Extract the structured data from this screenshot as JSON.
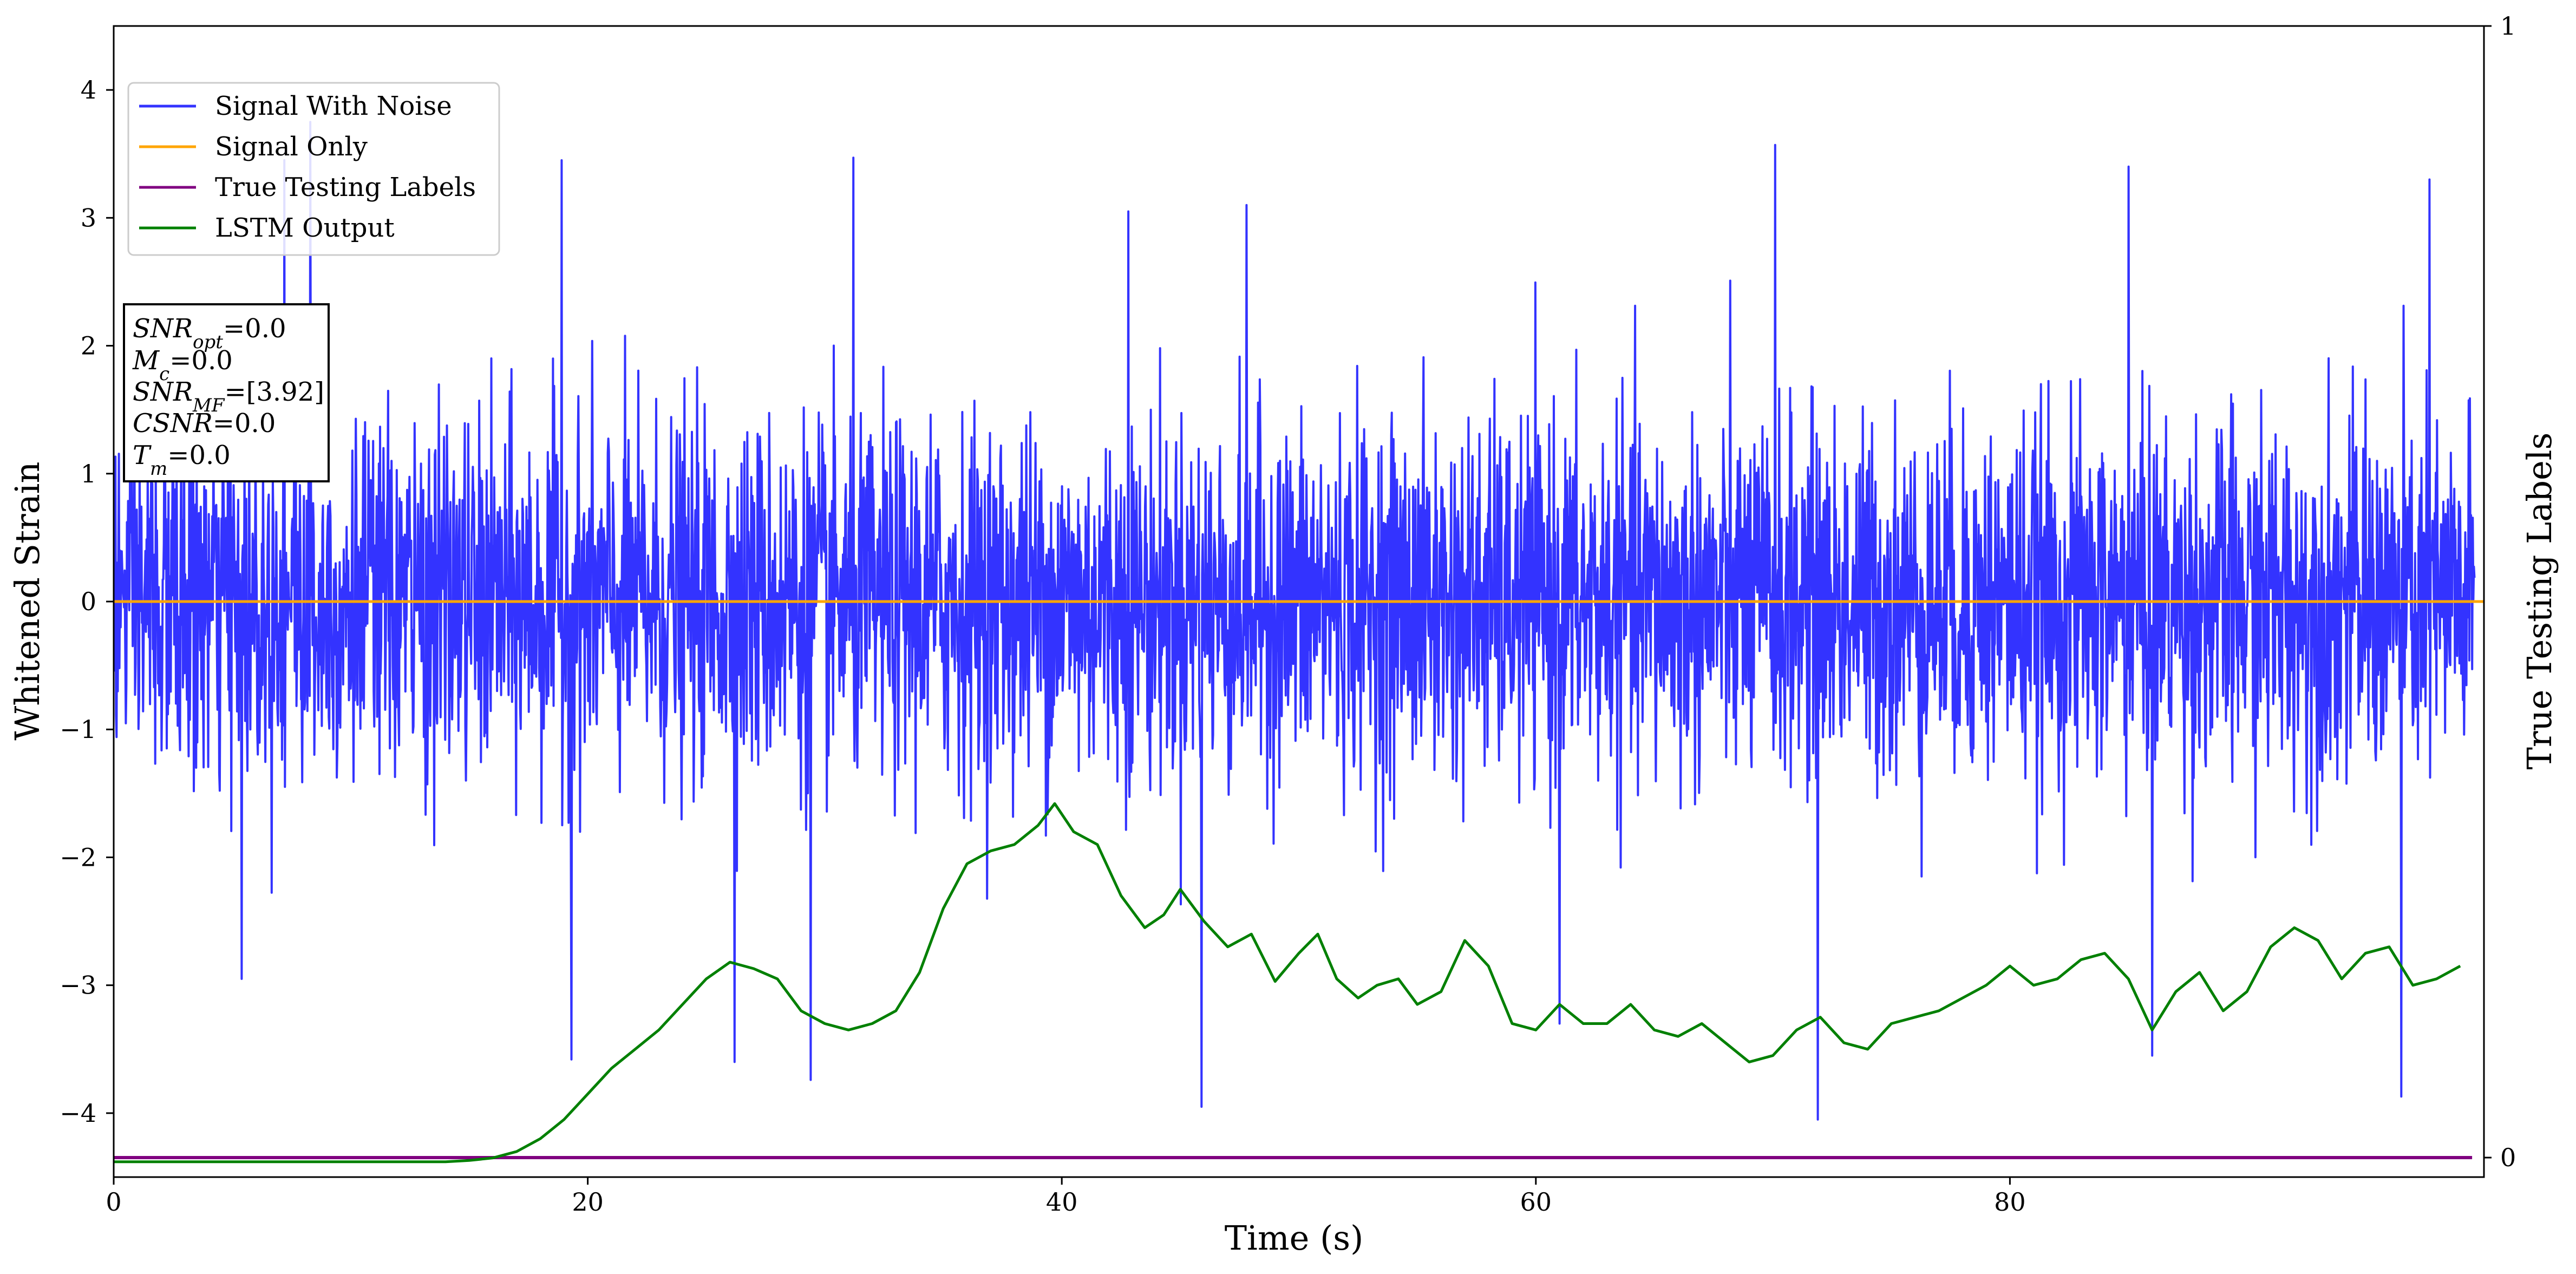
{
  "chart_data": {
    "type": "line",
    "xlabel": "Time (s)",
    "ylabel": "Whitened Strain",
    "y2label": "True Testing Labels",
    "xlim": [
      0,
      100
    ],
    "ylim": [
      -4.5,
      4.5
    ],
    "y2lim": [
      0,
      1
    ],
    "xticks": [
      0,
      20,
      40,
      60,
      80
    ],
    "yticks": [
      -4,
      -3,
      -2,
      -1,
      0,
      1,
      2,
      3,
      4
    ],
    "y2ticks": [
      0,
      1
    ],
    "grid": false,
    "legend": {
      "placement": "top-left",
      "entries": [
        {
          "name": "Signal With Noise",
          "color": "#3333ff"
        },
        {
          "name": "Signal Only",
          "color": "#ffa500"
        },
        {
          "name": "True Testing Labels",
          "color": "#800080"
        },
        {
          "name": "LSTM Output",
          "color": "#008000"
        }
      ]
    },
    "annotation": [
      {
        "label": "SNR",
        "sub": "opt",
        "value": "=0.0"
      },
      {
        "label": "M",
        "sub": "c",
        "value": "=0.0"
      },
      {
        "label": "SNR",
        "sub": "MF",
        "value": "=[3.92]"
      },
      {
        "label": "CSNR",
        "sub": "",
        "value": "=0.0"
      },
      {
        "label": "T",
        "sub": "m",
        "value": "=0.0"
      }
    ],
    "series": [
      {
        "name": "Signal With Noise",
        "axis": "left",
        "description_stats": {
          "typical_band": [
            -1.4,
            1.4
          ],
          "min": -4.05,
          "max": 3.78,
          "samples": 4096
        },
        "spikes": [
          {
            "x": 8.3,
            "y": 3.75
          },
          {
            "x": 7.2,
            "y": 3.45
          },
          {
            "x": 18.9,
            "y": 3.45
          },
          {
            "x": 31.2,
            "y": 3.47
          },
          {
            "x": 70.1,
            "y": 3.57
          },
          {
            "x": 97.7,
            "y": 3.3
          },
          {
            "x": 85.0,
            "y": 3.4
          },
          {
            "x": 47.8,
            "y": 3.1
          },
          {
            "x": 42.8,
            "y": 3.05
          },
          {
            "x": 71.9,
            "y": -4.05
          },
          {
            "x": 45.9,
            "y": -3.95
          },
          {
            "x": 29.4,
            "y": -3.74
          },
          {
            "x": 19.3,
            "y": -3.58
          },
          {
            "x": 26.2,
            "y": -3.6
          },
          {
            "x": 96.5,
            "y": -3.87
          },
          {
            "x": 86.0,
            "y": -3.55
          },
          {
            "x": 5.4,
            "y": -2.95
          },
          {
            "x": 61.0,
            "y": -3.3
          }
        ]
      },
      {
        "name": "Signal Only",
        "axis": "left",
        "x": [
          0,
          100
        ],
        "y": [
          0,
          0
        ]
      },
      {
        "name": "True Testing Labels",
        "axis": "right",
        "x": [
          0,
          99.5
        ],
        "y": [
          0,
          0
        ]
      },
      {
        "name": "LSTM Output",
        "axis": "left",
        "x": [
          0,
          14,
          15,
          16,
          17,
          18,
          19,
          20,
          21,
          22,
          23,
          24,
          25,
          26,
          27,
          28,
          29,
          30,
          31,
          32,
          33,
          34,
          35,
          36,
          37,
          38,
          39,
          39.7,
          40.5,
          41.5,
          42.5,
          43.5,
          44.3,
          45,
          46,
          47,
          48,
          49,
          50,
          50.8,
          51.6,
          52.5,
          53.3,
          54.2,
          55,
          56,
          57,
          58,
          59,
          60,
          61,
          62,
          63,
          64,
          65,
          66,
          67,
          68,
          69,
          70,
          71,
          72,
          73,
          74,
          75,
          76,
          77,
          78,
          79,
          80,
          81,
          82,
          83,
          84,
          85,
          86,
          87,
          88,
          89,
          90,
          91,
          92,
          93,
          94,
          95,
          96,
          97,
          98,
          99
        ],
        "y": [
          -4.38,
          -4.38,
          -4.37,
          -4.35,
          -4.3,
          -4.2,
          -4.05,
          -3.85,
          -3.65,
          -3.5,
          -3.35,
          -3.15,
          -2.95,
          -2.82,
          -2.87,
          -2.95,
          -3.2,
          -3.3,
          -3.35,
          -3.3,
          -3.2,
          -2.9,
          -2.4,
          -2.05,
          -1.95,
          -1.9,
          -1.75,
          -1.58,
          -1.8,
          -1.9,
          -2.3,
          -2.55,
          -2.45,
          -2.25,
          -2.5,
          -2.7,
          -2.6,
          -2.97,
          -2.75,
          -2.6,
          -2.95,
          -3.1,
          -3.0,
          -2.95,
          -3.15,
          -3.05,
          -2.65,
          -2.85,
          -3.3,
          -3.35,
          -3.15,
          -3.3,
          -3.3,
          -3.15,
          -3.35,
          -3.4,
          -3.3,
          -3.45,
          -3.6,
          -3.55,
          -3.35,
          -3.25,
          -3.45,
          -3.5,
          -3.3,
          -3.25,
          -3.2,
          -3.1,
          -3.0,
          -2.85,
          -3.0,
          -2.95,
          -2.8,
          -2.75,
          -2.95,
          -3.35,
          -3.05,
          -2.9,
          -3.2,
          -3.05,
          -2.7,
          -2.55,
          -2.65,
          -2.95,
          -2.75,
          -2.7,
          -3.0,
          -2.95,
          -2.85
        ]
      }
    ]
  }
}
